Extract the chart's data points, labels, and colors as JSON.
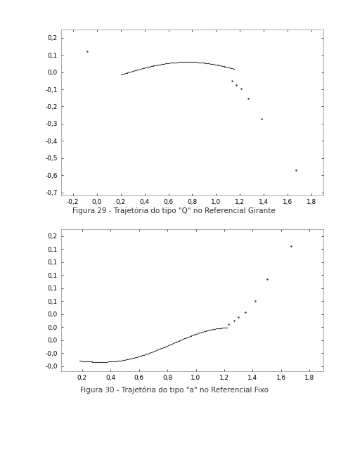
{
  "fig1_caption": "Figura 29 - Trajetória do tipo \"Q\" no Referencial Girante",
  "fig2_caption": "Figura 30 - Trajetória do tipo \"a\" no Referencial Fixo",
  "fig1_xlim": [
    -0.3,
    1.9
  ],
  "fig1_ylim": [
    -0.72,
    0.25
  ],
  "fig1_xticks": [
    -0.2,
    0.0,
    0.2,
    0.4,
    0.6,
    0.8,
    1.0,
    1.2,
    1.4,
    1.6,
    1.8
  ],
  "fig1_yticks": [
    -0.7,
    -0.6,
    -0.5,
    -0.4,
    -0.3,
    -0.2,
    -0.1,
    0.0,
    0.1,
    0.2
  ],
  "fig2_xlim": [
    0.05,
    1.9
  ],
  "fig2_ylim": [
    -0.048,
    0.17
  ],
  "fig2_xticks": [
    0.2,
    0.4,
    0.6,
    0.8,
    1.0,
    1.2,
    1.4,
    1.6,
    1.8
  ],
  "fig2_yticks": [
    -0.04,
    -0.02,
    0.0,
    0.02,
    0.04,
    0.06,
    0.08,
    0.1,
    0.12,
    0.14,
    0.16
  ],
  "dot_color": "#333333",
  "dot_size": 1.8,
  "sparse_dot_size": 3.5,
  "caption_fontsize": 7.5,
  "tick_fontsize": 6.5,
  "background_color": "#ffffff",
  "fig_background": "#ffffff"
}
